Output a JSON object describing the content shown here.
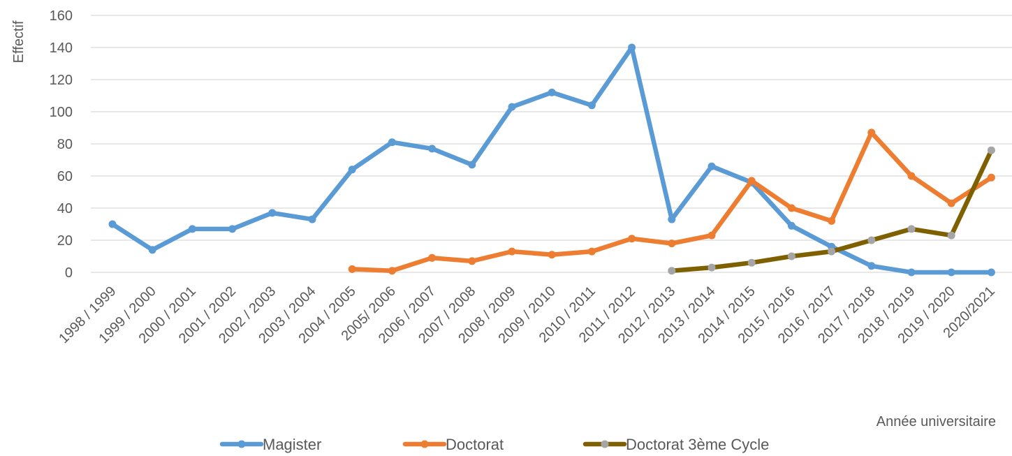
{
  "chart_data": {
    "type": "line",
    "title": "",
    "xlabel": "Année universitaire",
    "ylabel": "Effectif",
    "ylim": [
      0,
      160
    ],
    "yticks": [
      0,
      20,
      40,
      60,
      80,
      100,
      120,
      140,
      160
    ],
    "grid": true,
    "legend_position": "bottom",
    "categories": [
      "1998 / 1999",
      "1999 / 2000",
      "2000 / 2001",
      "2001 / 2002",
      "2002 / 2003",
      "2003 / 2004",
      "2004 / 2005",
      "2005/ 2006",
      "2006 / 2007",
      "2007 / 2008",
      "2008 / 2009",
      "2009 / 2010",
      "2010 / 2011",
      "2011 / 2012",
      "2012 / 2013",
      "2013 / 2014",
      "2014 / 2015",
      "2015 / 2016",
      "2016 / 2017",
      "2017 / 2018",
      "2018 / 2019",
      "2019 / 2020",
      "2020/2021"
    ],
    "series": [
      {
        "name": "Magister",
        "color": "#5b9bd5",
        "marker_color": "#5b9bd5",
        "values": [
          30,
          14,
          27,
          27,
          37,
          33,
          64,
          81,
          77,
          67,
          103,
          112,
          104,
          140,
          33,
          66,
          56,
          29,
          16,
          4,
          0,
          0,
          0
        ]
      },
      {
        "name": "Doctorat",
        "color": "#ed7d31",
        "marker_color": "#ed7d31",
        "values": [
          null,
          null,
          null,
          null,
          null,
          null,
          2,
          1,
          9,
          7,
          13,
          11,
          13,
          21,
          18,
          23,
          57,
          40,
          32,
          87,
          60,
          43,
          59
        ]
      },
      {
        "name": "Doctorat 3ème Cycle",
        "color": "#7f6000",
        "marker_color": "#a5a5a5",
        "values": [
          null,
          null,
          null,
          null,
          null,
          null,
          null,
          null,
          null,
          null,
          null,
          null,
          null,
          null,
          1,
          3,
          6,
          10,
          13,
          20,
          27,
          23,
          76
        ]
      }
    ]
  }
}
